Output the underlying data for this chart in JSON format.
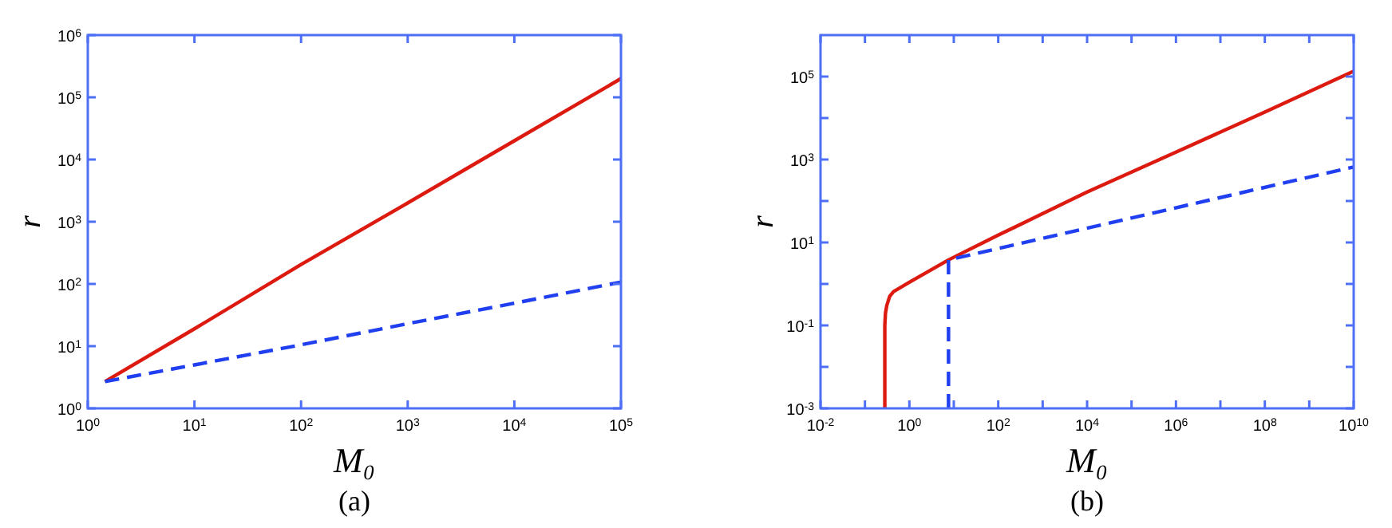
{
  "chart_data": [
    {
      "type": "line",
      "xlabel": "M₀",
      "ylabel": "r",
      "annotations": [
        "(a)"
      ],
      "log": "xy",
      "grid": false,
      "xlim": [
        1,
        100000
      ],
      "ylim": [
        1,
        1000000
      ],
      "xticks": [
        {
          "value": 1,
          "label": "10$^{0}$"
        },
        {
          "value": 10,
          "label": "10$^{1}$"
        },
        {
          "value": 100,
          "label": "10$^{2}$"
        },
        {
          "value": 1000,
          "label": "10$^{3}$"
        },
        {
          "value": 10000,
          "label": "10$^{4}$"
        },
        {
          "value": 100000,
          "label": "10$^{5}$"
        }
      ],
      "yticks": [
        {
          "value": 1,
          "label": "10$^{0}$"
        },
        {
          "value": 10,
          "label": "10$^{1}$"
        },
        {
          "value": 100,
          "label": "10$^{2}$"
        },
        {
          "value": 1000,
          "label": "10$^{3}$"
        },
        {
          "value": 10000,
          "label": "10$^{4}$"
        },
        {
          "value": 100000,
          "label": "10$^{5}$"
        },
        {
          "value": 1000000,
          "label": "10$^{6}$"
        }
      ],
      "series": [
        {
          "color": "#dd1a10",
          "line_style": "solid",
          "x": [
            1.45,
            10,
            100,
            1000,
            10000,
            100000
          ],
          "values": [
            2.7,
            19,
            205,
            2000,
            20000,
            200000
          ]
        },
        {
          "color": "#1f3ff0",
          "line_style": "dashed",
          "x": [
            1.45,
            10,
            100,
            1000,
            10000,
            100000
          ],
          "values": [
            2.7,
            5,
            10.5,
            23,
            49,
            107
          ]
        }
      ]
    },
    {
      "type": "line",
      "xlabel": "M₀",
      "ylabel": "r",
      "annotations": [
        "(b)"
      ],
      "log": "xy",
      "grid": false,
      "xlim": [
        0.01,
        10000000000
      ],
      "ylim": [
        0.001,
        1000000
      ],
      "xticks": [
        {
          "value": 0.01,
          "label": "10$^{-2}$"
        },
        {
          "value": 0.1,
          "label": null
        },
        {
          "value": 1,
          "label": "10$^{0}$"
        },
        {
          "value": 10,
          "label": null
        },
        {
          "value": 100,
          "label": "10$^{2}$"
        },
        {
          "value": 1000,
          "label": null
        },
        {
          "value": 10000,
          "label": "10$^{4}$"
        },
        {
          "value": 100000,
          "label": null
        },
        {
          "value": 1000000,
          "label": "10$^{6}$"
        },
        {
          "value": 10000000,
          "label": null
        },
        {
          "value": 100000000,
          "label": "10$^{8}$"
        },
        {
          "value": 1000000000,
          "label": null
        },
        {
          "value": 10000000000,
          "label": "10$^{10}$"
        }
      ],
      "yticks": [
        {
          "value": 0.001,
          "label": "10$^{-3}$"
        },
        {
          "value": 0.01,
          "label": null
        },
        {
          "value": 0.1,
          "label": "10$^{-1}$"
        },
        {
          "value": 1,
          "label": null
        },
        {
          "value": 10,
          "label": "10$^{1}$"
        },
        {
          "value": 100,
          "label": null
        },
        {
          "value": 1000,
          "label": "10$^{3}$"
        },
        {
          "value": 10000,
          "label": null
        },
        {
          "value": 100000,
          "label": "10$^{5}$"
        }
      ],
      "series": [
        {
          "color": "#dd1a10",
          "line_style": "solid",
          "x": [
            0.28,
            0.28,
            0.29,
            0.31,
            0.36,
            0.44,
            1,
            7.6,
            100,
            10000,
            1000000,
            100000000,
            10000000000
          ],
          "values": [
            0.001,
            0.1,
            0.2,
            0.3,
            0.5,
            0.65,
            1.1,
            3.8,
            15,
            165,
            1500,
            14000,
            135000
          ]
        },
        {
          "color": "#1f3ff0",
          "line_style": "dashed",
          "x": [
            7.6,
            7.6,
            10000000000
          ],
          "values": [
            0.001,
            3.8,
            660
          ]
        }
      ]
    }
  ]
}
